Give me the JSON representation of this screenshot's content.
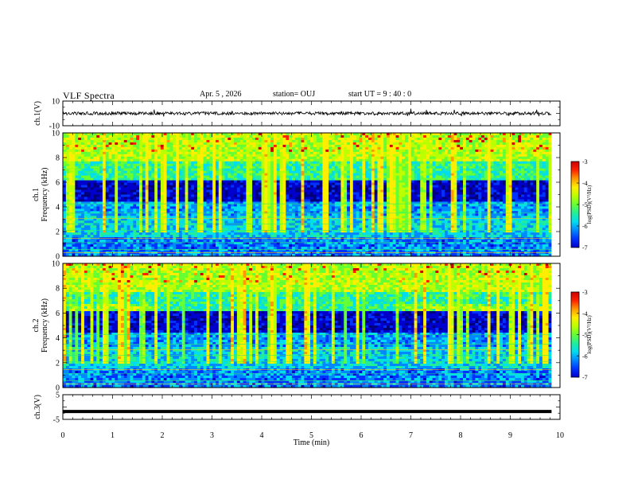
{
  "header": {
    "title": "VLF Spectra",
    "date": "Apr. 5 , 2026",
    "station": "station= OUJ",
    "start": "start  UT =   9 : 40 : 0"
  },
  "chart_data": [
    {
      "type": "line",
      "name": "ch1-waveform",
      "ylabel": "ch.1(V)",
      "ylim": [
        -10,
        10
      ],
      "yticks": [
        "10",
        "-10"
      ],
      "xlim": [
        0,
        10
      ],
      "trace_level": 0
    },
    {
      "type": "heatmap",
      "name": "ch1-spectrogram",
      "ylabel": "ch.1\nFrequency (kHz)",
      "ylabel_ch": "ch.1",
      "ylabel_freq": "Frequency (kHz)",
      "ylim": [
        0,
        10
      ],
      "yticks": [
        "0",
        "2",
        "4",
        "6",
        "8",
        "10"
      ],
      "colorbar": {
        "label": "log(PSD)(V²/Hz)",
        "range": [
          -7,
          -3
        ],
        "ticks": [
          "-3",
          "-4",
          "-5",
          "-6",
          "-7"
        ]
      }
    },
    {
      "type": "heatmap",
      "name": "ch2-spectrogram",
      "ylabel": "ch.2\nFrequency (kHz)",
      "ylabel_ch": "ch.2",
      "ylabel_freq": "Frequency (kHz)",
      "ylim": [
        0,
        10
      ],
      "yticks": [
        "0",
        "2",
        "4",
        "6",
        "8",
        "10"
      ],
      "colorbar": {
        "label": "log(PSD)(V²/Hz)",
        "range": [
          -7,
          -3
        ],
        "ticks": [
          "-3",
          "-4",
          "-5",
          "-6",
          "-7"
        ]
      }
    },
    {
      "type": "line",
      "name": "ch3-waveform",
      "ylabel": "ch.3(V)",
      "ylim": [
        -5,
        5
      ],
      "yticks": [
        "5",
        "-5"
      ],
      "xlim": [
        0,
        10
      ],
      "trace_level": -1.8
    }
  ],
  "xaxis": {
    "label": "Time (min)",
    "range": [
      0,
      10
    ],
    "ticks": [
      "0",
      "1",
      "2",
      "3",
      "4",
      "5",
      "6",
      "7",
      "8",
      "9",
      "10"
    ],
    "data_end": 9.83
  },
  "colors": {
    "map": [
      "#00007a",
      "#0000cc",
      "#0033ff",
      "#0088ff",
      "#00ddee",
      "#22ee99",
      "#66ff33",
      "#bbff00",
      "#ffee00",
      "#ff9900",
      "#ff2200",
      "#cc0000",
      "#ffffff"
    ]
  }
}
